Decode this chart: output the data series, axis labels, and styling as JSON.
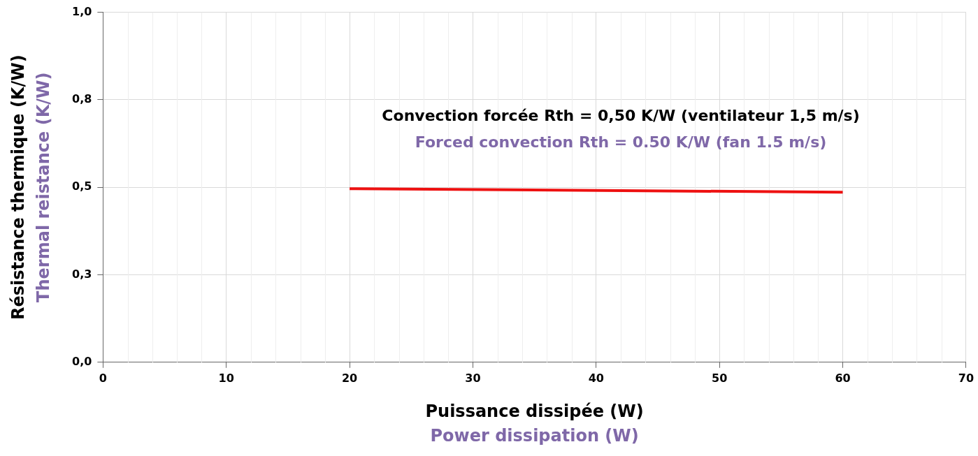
{
  "chart_data": {
    "type": "line",
    "xlabel": "Puissance dissipée (W)\nPower dissipation (W)",
    "ylabel": "Résistance thermique (K/W)\nThermal reistance (K/W)",
    "annotations": [
      "Convection forcée Rth = 0,50 K/W (ventilateur 1,5 m/s)",
      "Forced convection Rth = 0.50 K/W (fan 1.5 m/s)"
    ],
    "x": [
      20,
      60
    ],
    "series": [
      {
        "color": "#ee1111",
        "values": [
          0.496,
          0.486
        ]
      }
    ],
    "xlim": [
      0,
      70
    ],
    "xticks": [
      0,
      10,
      20,
      30,
      40,
      50,
      60,
      70
    ],
    "ylim": [
      0,
      1
    ],
    "yticks": [
      {
        "value": 0,
        "label": "0,0"
      },
      {
        "value": 0.25,
        "label": "0,3"
      },
      {
        "value": 0.5,
        "label": "0,5"
      },
      {
        "value": 0.75,
        "label": "0,8"
      },
      {
        "value": 1,
        "label": "1,0"
      }
    ],
    "grid": true,
    "legend": false,
    "marker": "none",
    "line_style": "solid"
  }
}
